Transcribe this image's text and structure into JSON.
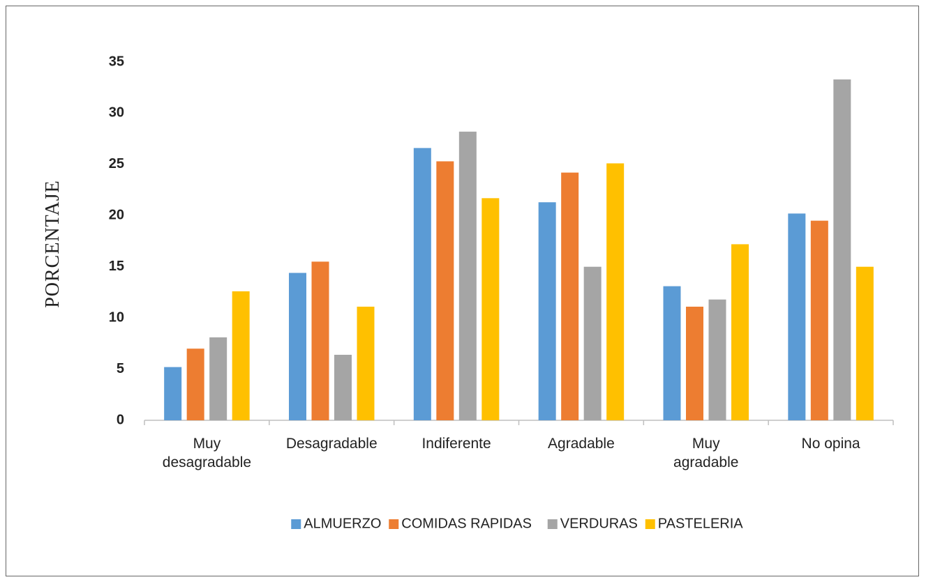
{
  "chart_data": {
    "type": "bar",
    "y_label": "PORCENTAJE",
    "categories": [
      "Muy desagradable",
      "Desagradable",
      "Indiferente",
      "Agradable",
      "Muy agradable",
      "No opina"
    ],
    "series": [
      {
        "name": "ALMUERZO",
        "color": "#5b9bd5",
        "values": [
          5.2,
          14.4,
          26.6,
          21.3,
          13.1,
          20.2
        ]
      },
      {
        "name": "COMIDAS RAPIDAS",
        "color": "#ed7d31",
        "values": [
          7.0,
          15.5,
          25.3,
          24.2,
          11.1,
          19.5
        ]
      },
      {
        "name": "VERDURAS",
        "color": "#a5a5a5",
        "values": [
          8.1,
          6.4,
          28.2,
          15.0,
          11.8,
          33.3
        ]
      },
      {
        "name": "PASTELERIA",
        "color": "#ffc000",
        "values": [
          12.6,
          11.1,
          21.7,
          25.1,
          17.2,
          15.0
        ]
      }
    ],
    "ylim": [
      0,
      35
    ],
    "yticks": [
      0,
      5,
      10,
      15,
      20,
      25,
      30,
      35
    ],
    "grid": false,
    "legend": "bottom"
  }
}
